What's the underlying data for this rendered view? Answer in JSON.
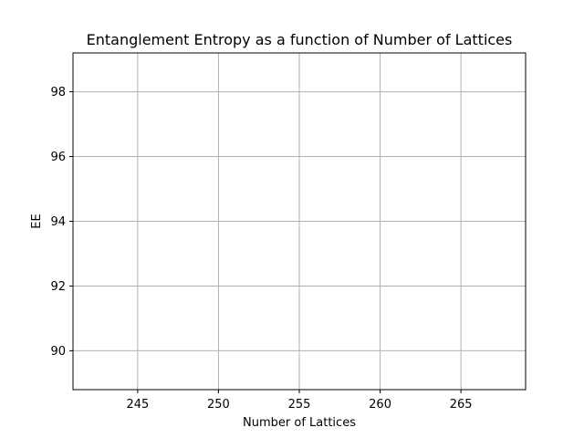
{
  "chart_data": {
    "type": "line",
    "title": "Entanglement Entropy as a function of Number of Lattices",
    "xlabel": "Number of Lattices",
    "ylabel": "EE",
    "xlim": [
      241,
      269
    ],
    "ylim": [
      88.8,
      99.2
    ],
    "x_ticks": [
      245,
      250,
      255,
      260,
      265
    ],
    "y_ticks": [
      90,
      92,
      94,
      96,
      98
    ],
    "grid": true,
    "series": []
  },
  "colors": {
    "grid": "#b0b0b0",
    "axes": "#000000",
    "background": "#ffffff"
  }
}
